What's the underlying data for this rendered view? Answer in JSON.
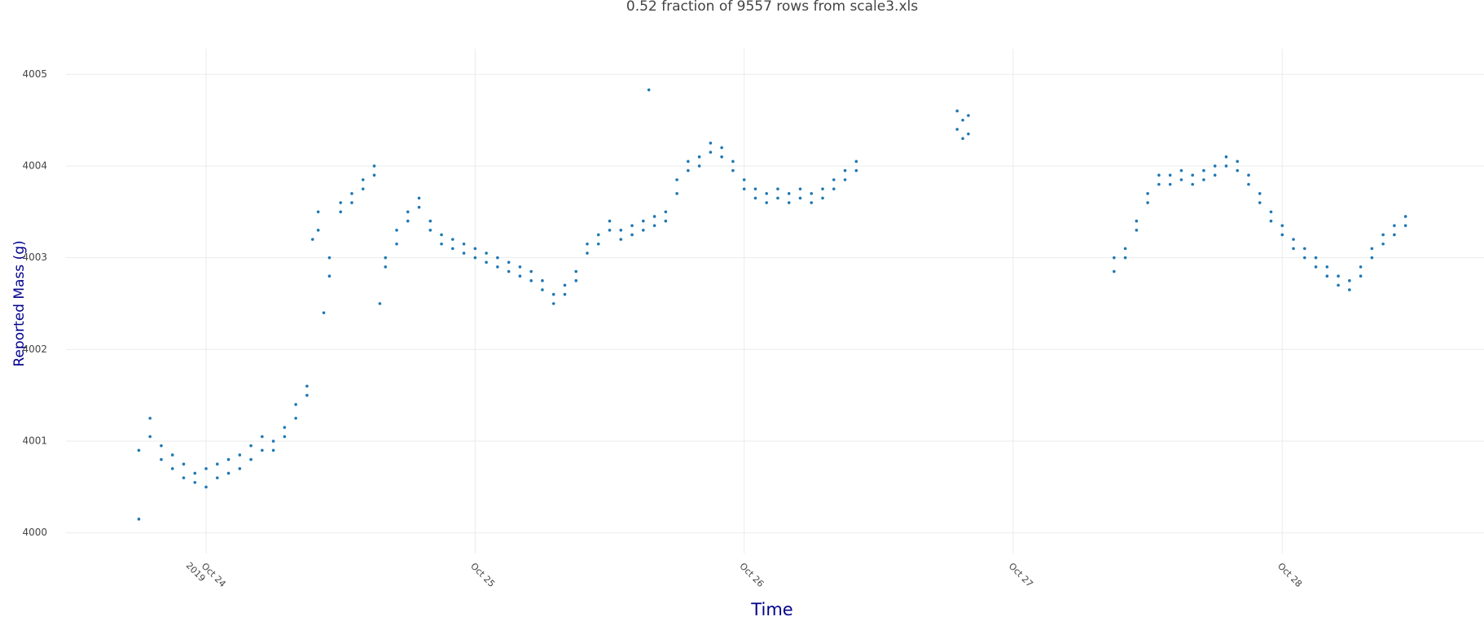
{
  "chart_data": {
    "type": "scatter",
    "title": "0.52 fraction of 9557 rows from scale3.xls",
    "x_label": "Time",
    "y_label": "Reported Mass (g)",
    "color": "#1f77b4",
    "grid": true,
    "xlim": [
      "2019-10-23T11:30",
      "2019-10-28T18:00"
    ],
    "xticks": [
      {
        "value": "2019-10-24T00:00",
        "label": "Oct 24\n2019"
      },
      {
        "value": "2019-10-25T00:00",
        "label": "Oct 25"
      },
      {
        "value": "2019-10-26T00:00",
        "label": "Oct 26"
      },
      {
        "value": "2019-10-27T00:00",
        "label": "Oct 27"
      },
      {
        "value": "2019-10-28T00:00",
        "label": "Oct 28"
      }
    ],
    "ylim": [
      3999.9,
      4005.1
    ],
    "yticks": [
      4000,
      4001,
      4002,
      4003,
      4004,
      4005
    ],
    "x": [
      "2019-10-23T18:00",
      "2019-10-23T18:00",
      "2019-10-23T19:00",
      "2019-10-23T19:00",
      "2019-10-23T20:00",
      "2019-10-23T20:00",
      "2019-10-23T21:00",
      "2019-10-23T21:00",
      "2019-10-23T22:00",
      "2019-10-23T22:00",
      "2019-10-23T23:00",
      "2019-10-23T23:00",
      "2019-10-24T00:00",
      "2019-10-24T00:00",
      "2019-10-24T01:00",
      "2019-10-24T01:00",
      "2019-10-24T02:00",
      "2019-10-24T02:00",
      "2019-10-24T03:00",
      "2019-10-24T03:00",
      "2019-10-24T04:00",
      "2019-10-24T04:00",
      "2019-10-24T05:00",
      "2019-10-24T05:00",
      "2019-10-24T06:00",
      "2019-10-24T06:00",
      "2019-10-24T07:00",
      "2019-10-24T07:00",
      "2019-10-24T08:00",
      "2019-10-24T08:00",
      "2019-10-24T09:00",
      "2019-10-24T09:00",
      "2019-10-24T09:30",
      "2019-10-24T10:00",
      "2019-10-24T10:00",
      "2019-10-24T10:30",
      "2019-10-24T11:00",
      "2019-10-24T11:00",
      "2019-10-24T12:00",
      "2019-10-24T12:00",
      "2019-10-24T13:00",
      "2019-10-24T13:00",
      "2019-10-24T14:00",
      "2019-10-24T14:00",
      "2019-10-24T15:00",
      "2019-10-24T15:00",
      "2019-10-24T15:30",
      "2019-10-24T16:00",
      "2019-10-24T16:00",
      "2019-10-24T17:00",
      "2019-10-24T17:00",
      "2019-10-24T18:00",
      "2019-10-24T18:00",
      "2019-10-24T19:00",
      "2019-10-24T19:00",
      "2019-10-24T20:00",
      "2019-10-24T20:00",
      "2019-10-24T21:00",
      "2019-10-24T21:00",
      "2019-10-24T22:00",
      "2019-10-24T22:00",
      "2019-10-24T23:00",
      "2019-10-24T23:00",
      "2019-10-25T00:00",
      "2019-10-25T00:00",
      "2019-10-25T01:00",
      "2019-10-25T01:00",
      "2019-10-25T02:00",
      "2019-10-25T02:00",
      "2019-10-25T03:00",
      "2019-10-25T03:00",
      "2019-10-25T04:00",
      "2019-10-25T04:00",
      "2019-10-25T05:00",
      "2019-10-25T05:00",
      "2019-10-25T06:00",
      "2019-10-25T06:00",
      "2019-10-25T07:00",
      "2019-10-25T07:00",
      "2019-10-25T08:00",
      "2019-10-25T08:00",
      "2019-10-25T09:00",
      "2019-10-25T09:00",
      "2019-10-25T10:00",
      "2019-10-25T10:00",
      "2019-10-25T11:00",
      "2019-10-25T11:00",
      "2019-10-25T12:00",
      "2019-10-25T12:00",
      "2019-10-25T13:00",
      "2019-10-25T13:00",
      "2019-10-25T14:00",
      "2019-10-25T14:00",
      "2019-10-25T15:00",
      "2019-10-25T15:00",
      "2019-10-25T15:30",
      "2019-10-25T16:00",
      "2019-10-25T16:00",
      "2019-10-25T17:00",
      "2019-10-25T17:00",
      "2019-10-25T18:00",
      "2019-10-25T18:00",
      "2019-10-25T19:00",
      "2019-10-25T19:00",
      "2019-10-25T20:00",
      "2019-10-25T20:00",
      "2019-10-25T21:00",
      "2019-10-25T21:00",
      "2019-10-25T22:00",
      "2019-10-25T22:00",
      "2019-10-25T23:00",
      "2019-10-25T23:00",
      "2019-10-26T00:00",
      "2019-10-26T00:00",
      "2019-10-26T01:00",
      "2019-10-26T01:00",
      "2019-10-26T02:00",
      "2019-10-26T02:00",
      "2019-10-26T03:00",
      "2019-10-26T03:00",
      "2019-10-26T04:00",
      "2019-10-26T04:00",
      "2019-10-26T05:00",
      "2019-10-26T05:00",
      "2019-10-26T06:00",
      "2019-10-26T06:00",
      "2019-10-26T07:00",
      "2019-10-26T07:00",
      "2019-10-26T08:00",
      "2019-10-26T08:00",
      "2019-10-26T09:00",
      "2019-10-26T09:00",
      "2019-10-26T10:00",
      "2019-10-26T10:00",
      "2019-10-26T19:00",
      "2019-10-26T19:00",
      "2019-10-26T19:30",
      "2019-10-26T19:30",
      "2019-10-26T20:00",
      "2019-10-26T20:00",
      "2019-10-27T09:00",
      "2019-10-27T09:00",
      "2019-10-27T10:00",
      "2019-10-27T10:00",
      "2019-10-27T11:00",
      "2019-10-27T11:00",
      "2019-10-27T12:00",
      "2019-10-27T12:00",
      "2019-10-27T13:00",
      "2019-10-27T13:00",
      "2019-10-27T14:00",
      "2019-10-27T14:00",
      "2019-10-27T15:00",
      "2019-10-27T15:00",
      "2019-10-27T16:00",
      "2019-10-27T16:00",
      "2019-10-27T17:00",
      "2019-10-27T17:00",
      "2019-10-27T18:00",
      "2019-10-27T18:00",
      "2019-10-27T19:00",
      "2019-10-27T19:00",
      "2019-10-27T20:00",
      "2019-10-27T20:00",
      "2019-10-27T21:00",
      "2019-10-27T21:00",
      "2019-10-27T22:00",
      "2019-10-27T22:00",
      "2019-10-27T23:00",
      "2019-10-27T23:00",
      "2019-10-28T00:00",
      "2019-10-28T00:00",
      "2019-10-28T01:00",
      "2019-10-28T01:00",
      "2019-10-28T02:00",
      "2019-10-28T02:00",
      "2019-10-28T03:00",
      "2019-10-28T03:00",
      "2019-10-28T04:00",
      "2019-10-28T04:00",
      "2019-10-28T05:00",
      "2019-10-28T05:00",
      "2019-10-28T06:00",
      "2019-10-28T06:00",
      "2019-10-28T07:00",
      "2019-10-28T07:00",
      "2019-10-28T08:00",
      "2019-10-28T08:00",
      "2019-10-28T09:00",
      "2019-10-28T09:00",
      "2019-10-28T10:00",
      "2019-10-28T10:00",
      "2019-10-28T11:00",
      "2019-10-28T11:00"
    ],
    "values": [
      4000.15,
      4000.9,
      4001.25,
      4001.05,
      4000.95,
      4000.8,
      4000.7,
      4000.85,
      4000.6,
      4000.75,
      4000.65,
      4000.55,
      4000.7,
      4000.5,
      4000.75,
      4000.6,
      4000.65,
      4000.8,
      4000.85,
      4000.7,
      4000.8,
      4000.95,
      4000.9,
      4001.05,
      4001.0,
      4000.9,
      4001.15,
      4001.05,
      4001.4,
      4001.25,
      4001.6,
      4001.5,
      4003.2,
      4003.5,
      4003.3,
      4002.4,
      4002.8,
      4003.0,
      4003.6,
      4003.5,
      4003.7,
      4003.6,
      4003.85,
      4003.75,
      4004.0,
      4003.9,
      4002.5,
      4003.0,
      4002.9,
      4003.3,
      4003.15,
      4003.5,
      4003.4,
      4003.55,
      4003.65,
      4003.4,
      4003.3,
      4003.25,
      4003.15,
      4003.1,
      4003.2,
      4003.05,
      4003.15,
      4003.0,
      4003.1,
      4003.05,
      4002.95,
      4003.0,
      4002.9,
      4002.95,
      4002.85,
      4002.9,
      4002.8,
      4002.75,
      4002.85,
      4002.65,
      4002.75,
      4002.6,
      4002.5,
      4002.7,
      4002.6,
      4002.85,
      4002.75,
      4003.05,
      4003.15,
      4003.25,
      4003.15,
      4003.3,
      4003.4,
      4003.3,
      4003.2,
      4003.35,
      4003.25,
      4003.4,
      4003.3,
      4004.83,
      4003.45,
      4003.35,
      4003.5,
      4003.4,
      4003.85,
      4003.7,
      4003.95,
      4004.05,
      4004.1,
      4004.0,
      4004.25,
      4004.15,
      4004.2,
      4004.1,
      4004.05,
      4003.95,
      4003.85,
      4003.75,
      4003.75,
      4003.65,
      4003.7,
      4003.6,
      4003.75,
      4003.65,
      4003.7,
      4003.6,
      4003.65,
      4003.75,
      4003.7,
      4003.6,
      4003.75,
      4003.65,
      4003.85,
      4003.75,
      4003.95,
      4003.85,
      4004.05,
      4003.95,
      4004.6,
      4004.4,
      4004.5,
      4004.3,
      4004.55,
      4004.35,
      4003.0,
      4002.85,
      4003.1,
      4003.0,
      4003.4,
      4003.3,
      4003.7,
      4003.6,
      4003.9,
      4003.8,
      4003.9,
      4003.8,
      4003.95,
      4003.85,
      4003.9,
      4003.8,
      4003.95,
      4003.85,
      4004.0,
      4003.9,
      4004.1,
      4004.0,
      4004.05,
      4003.95,
      4003.9,
      4003.8,
      4003.7,
      4003.6,
      4003.5,
      4003.4,
      4003.35,
      4003.25,
      4003.2,
      4003.1,
      4003.1,
      4003.0,
      4003.0,
      4002.9,
      4002.9,
      4002.8,
      4002.8,
      4002.7,
      4002.75,
      4002.65,
      4002.9,
      4002.8,
      4003.1,
      4003.0,
      4003.25,
      4003.15,
      4003.35,
      4003.25,
      4003.45,
      4003.35
    ]
  }
}
